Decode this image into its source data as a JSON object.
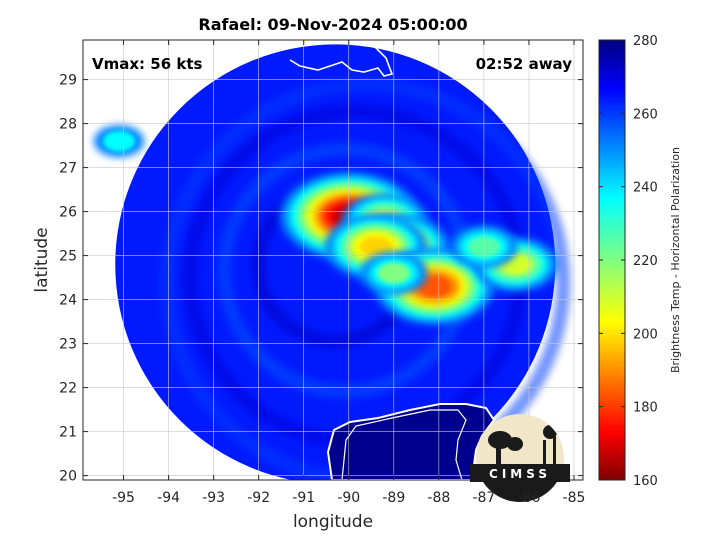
{
  "title": "Rafael: 09-Nov-2024 05:00:00",
  "vmax_label": "Vmax: 56 kts",
  "time_label": "02:52 away",
  "logo_text": "CIMSS",
  "chart_data": {
    "type": "heatmap",
    "title": "Rafael: 09-Nov-2024 05:00:00",
    "xlabel": "longitude",
    "ylabel": "latitude",
    "xlim": [
      -95.9,
      -84.8
    ],
    "ylim": [
      19.9,
      29.9
    ],
    "xticks": [
      -95,
      -94,
      -93,
      -92,
      -91,
      -90,
      -89,
      -88,
      -87,
      -86,
      -85
    ],
    "yticks": [
      20,
      21,
      22,
      23,
      24,
      25,
      26,
      27,
      28,
      29
    ],
    "grid": true,
    "colorbar": {
      "label": "Brightness Temp - Horizontal Polarization",
      "range": [
        160,
        280
      ],
      "ticks": [
        160,
        180,
        200,
        220,
        240,
        260,
        280
      ],
      "colormap": "jet"
    },
    "swath": {
      "center_lon": -90.3,
      "center_lat": 24.8,
      "radius_deg_lat": 5.0
    },
    "background_tb": 262,
    "land_tb": 285,
    "features": [
      {
        "lon": -90.0,
        "lat": 25.9,
        "tb": 168
      },
      {
        "lon": -89.2,
        "lat": 25.8,
        "tb": 210
      },
      {
        "lon": -88.9,
        "lat": 25.2,
        "tb": 195
      },
      {
        "lon": -89.4,
        "lat": 25.2,
        "tb": 200
      },
      {
        "lon": -88.1,
        "lat": 24.3,
        "tb": 185
      },
      {
        "lon": -86.3,
        "lat": 24.8,
        "tb": 210
      },
      {
        "lon": -87.0,
        "lat": 25.2,
        "tb": 225
      },
      {
        "lon": -89.0,
        "lat": 24.6,
        "tb": 220
      },
      {
        "lon": -95.1,
        "lat": 27.6,
        "tb": 235
      }
    ]
  }
}
